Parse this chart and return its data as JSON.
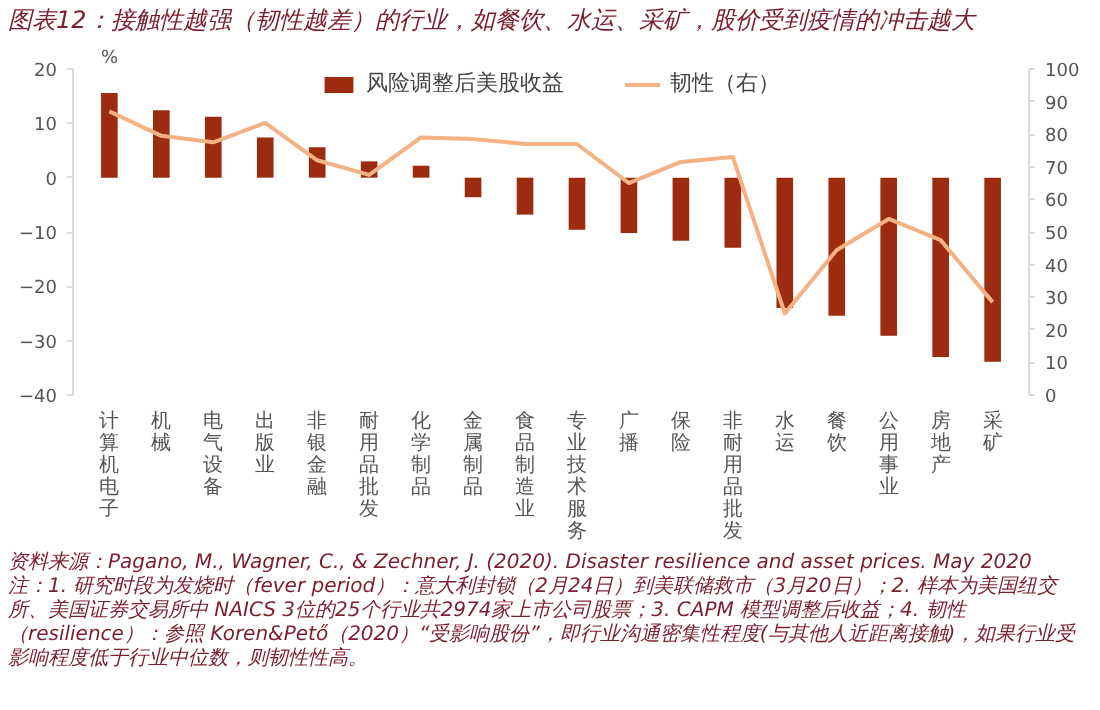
{
  "chart_data": {
    "type": "bar",
    "title": "图表12：接触性越强（韧性越差）的行业，如餐饮、水运、采矿，股价受到疫情的冲击越大",
    "ylabel": "%",
    "categories": [
      "计算机电子",
      "机械",
      "电气设备",
      "出版业",
      "非银金融",
      "耐用品批发",
      "化学制品",
      "金属制品",
      "食品制造业",
      "专业技术服务",
      "广播",
      "保险",
      "非耐用品批发",
      "水运",
      "餐饮",
      "公用事业",
      "房地产",
      "采矿"
    ],
    "series": [
      {
        "name": "风险调整后美股收益",
        "color": "#9c2b0f",
        "values": [
          15.6,
          12.4,
          11.2,
          7.4,
          5.6,
          3.0,
          2.2,
          -3.6,
          -6.8,
          -9.6,
          -10.2,
          -11.6,
          -12.9,
          -24.0,
          -25.4,
          -29.1,
          -33.0,
          -33.9
        ]
      },
      {
        "name": "韧性（右）",
        "type": "line",
        "axis": "y2",
        "color": "#f4b183",
        "values": [
          87,
          79.5,
          77.5,
          83.5,
          72,
          67.5,
          79,
          78.5,
          77,
          77,
          65,
          71.5,
          73,
          25,
          44.5,
          54,
          47.5,
          28.5
        ]
      }
    ],
    "ylim": [
      -40,
      20
    ],
    "yticks": [
      -40,
      -30,
      -20,
      -10,
      0,
      10,
      20
    ],
    "y2lim": [
      0,
      100
    ],
    "y2ticks": [
      0,
      10,
      20,
      30,
      40,
      50,
      60,
      70,
      80,
      90,
      100
    ],
    "grid": false,
    "legend": "top",
    "annotations": [
      "资料来源：Pagano, M., Wagner, C., & Zechner, J. (2020). Disaster resilience and asset prices. May 2020",
      "注：1. 研究时段为发烧时（fever period）：意大利封锁（2月24日）到美联储救市（3月20日）；2. 样本为美国纽交所、美国证券交易所中 NAICS 3位的25个行业共2974家上市公司股票；3. CAPM 模型调整后收益；4. 韧性（resilience）：参照 Koren&Pető（2020）“受影响股份”，即行业沟通密集性程度(与其他人近距离接触)，如果行业受影响程度低于行业中位数，则韧性性高。"
    ]
  }
}
